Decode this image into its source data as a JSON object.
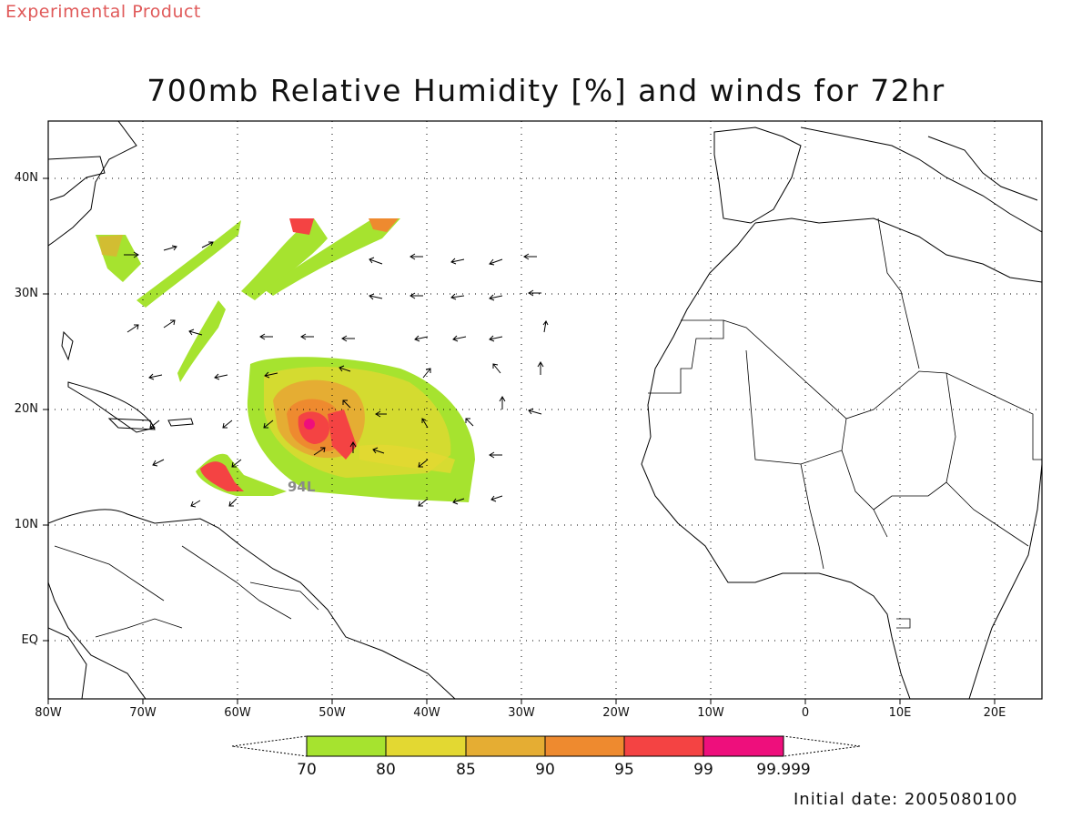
{
  "header": {
    "product_note": "Experimental Product",
    "title": "700mb Relative Humidity [%] and winds for 72hr"
  },
  "axes": {
    "lat_labels": [
      "40N",
      "30N",
      "20N",
      "10N",
      "EQ"
    ],
    "lon_labels": [
      "80W",
      "70W",
      "60W",
      "50W",
      "40W",
      "30W",
      "20W",
      "10W",
      "0",
      "10E",
      "20E"
    ]
  },
  "map_extent": {
    "lon": [
      -80,
      25
    ],
    "lat": [
      -5,
      45
    ]
  },
  "storm_label": "94L",
  "colorbar": {
    "levels": [
      "70",
      "80",
      "85",
      "90",
      "95",
      "99",
      "99.999"
    ],
    "colors": [
      "#a6e32f",
      "#e3d832",
      "#e5ad33",
      "#ee8a2f",
      "#f44343",
      "#ee0f7c"
    ]
  },
  "footer": {
    "initial_date": "Initial date: 2005080100"
  }
}
